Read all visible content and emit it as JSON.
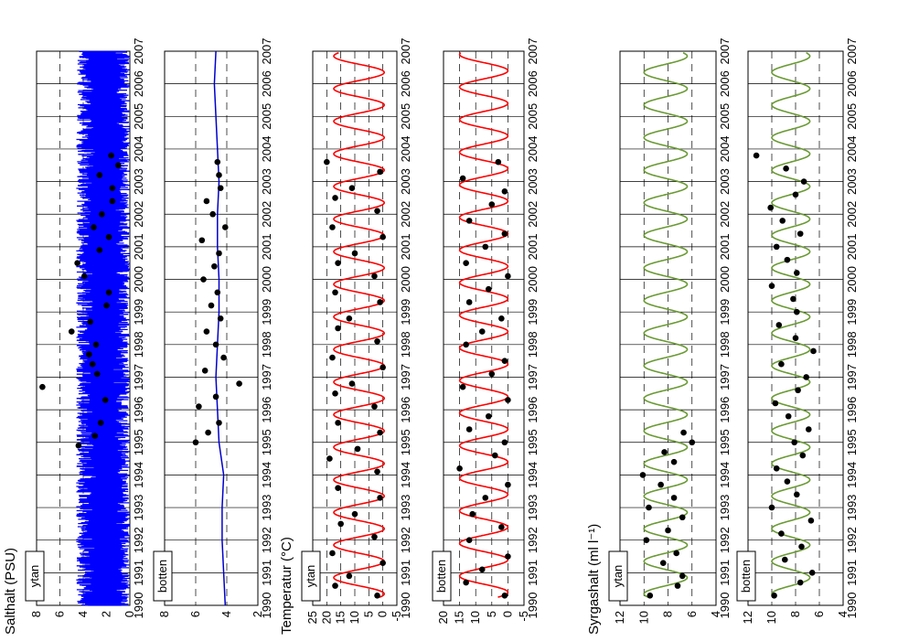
{
  "chart_data": [
    {
      "type": "line",
      "group": "salinity",
      "panel": "ytan",
      "color": "#0000ff",
      "fill_band": true,
      "ylabel": "Salthalt (PSU)",
      "label": "ytan",
      "ylim": [
        0,
        8
      ],
      "yticks": [
        0,
        2,
        4,
        6,
        8
      ],
      "xlim": [
        1990,
        2007
      ],
      "xticks": [
        1990,
        1991,
        1992,
        1993,
        1994,
        1995,
        1996,
        1997,
        1998,
        1999,
        2000,
        2001,
        2002,
        2003,
        2004,
        2005,
        2006,
        2007
      ],
      "grid": true,
      "line": {
        "x": [
          1990,
          1991,
          1992,
          1993,
          1994,
          1995,
          1996,
          1997,
          1998,
          1999,
          2000,
          2001,
          2002,
          2003,
          2004,
          2005,
          2006,
          2007
        ],
        "y": [
          2.5,
          2.6,
          2.5,
          2.7,
          2.5,
          2.6,
          2.7,
          2.6,
          2.8,
          2.6,
          2.5,
          2.6,
          2.6,
          2.5,
          2.6,
          2.5,
          2.6,
          2.5
        ]
      },
      "band": {
        "lower": 0.0,
        "upper": 4.6
      },
      "points": {
        "x": [
          1994.9,
          1995.2,
          1995.6,
          1996.3,
          1996.7,
          1997.1,
          1997.4,
          1997.7,
          1998.0,
          1998.4,
          1998.7,
          1999.2,
          1999.6,
          2000.1,
          2000.5,
          2000.9,
          2001.3,
          2001.6,
          2002.0,
          2002.4,
          2002.8,
          2003.2,
          2003.5,
          2003.8
        ],
        "y": [
          4.4,
          3.0,
          2.5,
          2.1,
          7.5,
          2.8,
          3.2,
          3.5,
          2.9,
          5.0,
          3.4,
          2.0,
          1.8,
          3.9,
          4.5,
          2.6,
          1.8,
          3.1,
          2.4,
          1.5,
          1.5,
          2.6,
          1.0,
          1.6
        ]
      }
    },
    {
      "type": "line",
      "group": "salinity",
      "panel": "botten",
      "color": "#0000cc",
      "ylabel": "",
      "label": "botten",
      "ylim": [
        2,
        8
      ],
      "yticks": [
        2,
        4,
        6,
        8
      ],
      "xlim": [
        1990,
        2007
      ],
      "xticks": [
        1990,
        1991,
        1992,
        1993,
        1994,
        1995,
        1996,
        1997,
        1998,
        1999,
        2000,
        2001,
        2002,
        2003,
        2004,
        2005,
        2006,
        2007
      ],
      "grid": true,
      "line": {
        "x": [
          1990,
          1991,
          1992,
          1993,
          1994,
          1995,
          1996,
          1997,
          1998,
          1999,
          2000,
          2001,
          2002,
          2003,
          2004,
          2005,
          2006,
          2007
        ],
        "y": [
          4.1,
          4.2,
          4.3,
          4.3,
          4.2,
          4.5,
          4.6,
          4.7,
          4.6,
          4.5,
          4.5,
          4.6,
          4.6,
          4.5,
          4.6,
          4.7,
          4.8,
          4.7
        ]
      },
      "points": {
        "x": [
          1995.0,
          1995.3,
          1995.6,
          1996.1,
          1996.4,
          1996.8,
          1997.2,
          1997.6,
          1998.0,
          1998.4,
          1998.8,
          1999.2,
          1999.6,
          2000.0,
          2000.4,
          2000.8,
          2001.2,
          2001.6,
          2002.0,
          2002.4,
          2002.8,
          2003.2,
          2003.6
        ],
        "y": [
          6.0,
          5.2,
          4.5,
          5.8,
          4.7,
          3.2,
          5.4,
          4.2,
          4.7,
          5.3,
          4.4,
          5.0,
          4.6,
          5.5,
          4.8,
          4.5,
          5.6,
          4.1,
          4.9,
          5.3,
          4.4,
          4.5,
          4.6
        ]
      }
    },
    {
      "type": "line",
      "group": "temperature",
      "panel": "ytan",
      "color": "#ff0000",
      "ylabel": "Temperatur (°C)",
      "label": "ytan",
      "ylim": [
        -5,
        25
      ],
      "yticks": [
        -5,
        0,
        5,
        10,
        15,
        20,
        25
      ],
      "xlim": [
        1990,
        2007
      ],
      "xticks": [
        1990,
        1991,
        1992,
        1993,
        1994,
        1995,
        1996,
        1997,
        1998,
        1999,
        2000,
        2001,
        2002,
        2003,
        2004,
        2005,
        2006,
        2007
      ],
      "grid": true,
      "seasonal": {
        "mean": 8.5,
        "amplitude": 9.0,
        "phase": 0.6
      },
      "points": {
        "x": [
          1990.3,
          1990.6,
          1990.9,
          1991.3,
          1991.6,
          1992.1,
          1992.5,
          1992.8,
          1993.3,
          1993.6,
          1994.1,
          1994.5,
          1994.8,
          1995.3,
          1995.6,
          1996.1,
          1996.5,
          1996.8,
          1997.3,
          1997.6,
          1998.1,
          1998.5,
          1998.8,
          1999.3,
          1999.6,
          2000.1,
          2000.5,
          2000.8,
          2001.3,
          2001.6,
          2002.1,
          2002.5,
          2002.8,
          2003.3,
          2003.6
        ],
        "y": [
          2,
          17,
          12,
          0,
          18,
          3,
          15,
          10,
          1,
          16,
          2,
          19,
          9,
          1,
          16,
          3,
          17,
          11,
          0,
          18,
          2,
          16,
          12,
          1,
          17,
          3,
          16,
          10,
          0,
          18,
          2,
          17,
          11,
          1,
          20
        ]
      }
    },
    {
      "type": "line",
      "group": "temperature",
      "panel": "botten",
      "color": "#ff0000",
      "ylabel": "",
      "label": "botten",
      "ylim": [
        -5,
        20
      ],
      "yticks": [
        -5,
        0,
        5,
        10,
        15,
        20
      ],
      "xlim": [
        1990,
        2007
      ],
      "xticks": [
        1990,
        1991,
        1992,
        1993,
        1994,
        1995,
        1996,
        1997,
        1998,
        1999,
        2000,
        2001,
        2002,
        2003,
        2004,
        2005,
        2006,
        2007
      ],
      "grid": true,
      "seasonal": {
        "mean": 7.5,
        "amplitude": 7.5,
        "phase": 0.65
      },
      "points": {
        "x": [
          1990.3,
          1990.7,
          1991.1,
          1991.5,
          1992.0,
          1992.4,
          1992.8,
          1993.3,
          1993.7,
          1994.2,
          1994.6,
          1995.0,
          1995.4,
          1995.8,
          1996.3,
          1996.7,
          1997.1,
          1997.5,
          1998.0,
          1998.4,
          1998.8,
          1999.3,
          1999.7,
          2000.1,
          2000.5,
          2001.0,
          2001.4,
          2001.8,
          2002.3,
          2002.7,
          2003.1,
          2003.6
        ],
        "y": [
          1,
          13,
          8,
          0,
          12,
          2,
          11,
          7,
          0,
          15,
          4,
          1,
          12,
          6,
          0,
          14,
          5,
          1,
          13,
          8,
          2,
          12,
          6,
          0,
          13,
          7,
          1,
          12,
          5,
          1,
          14,
          3
        ]
      }
    },
    {
      "type": "line",
      "group": "oxygen",
      "panel": "ytan",
      "color": "#6a9a34",
      "ylabel": "Syrgashalt (ml l⁻¹)",
      "label": "ytan",
      "ylim": [
        4,
        12
      ],
      "yticks": [
        4,
        6,
        8,
        10,
        12
      ],
      "xlim": [
        1990,
        2007
      ],
      "xticks": [
        1990,
        1991,
        1992,
        1993,
        1994,
        1995,
        1996,
        1997,
        1998,
        1999,
        2000,
        2001,
        2002,
        2003,
        2004,
        2005,
        2006,
        2007
      ],
      "grid": true,
      "seasonal": {
        "mean": 8.2,
        "amplitude": 1.8,
        "phase": 0.1
      },
      "points": {
        "x": [
          1990.3,
          1990.6,
          1990.9,
          1991.3,
          1991.6,
          1992.0,
          1992.3,
          1992.7,
          1993.0,
          1993.3,
          1993.7,
          1994.0,
          1994.4,
          1994.7,
          1995.0,
          1995.3
        ],
        "y": [
          9.5,
          7.2,
          6.8,
          8.4,
          7.3,
          9.8,
          8.0,
          6.8,
          9.6,
          7.5,
          8.6,
          10.1,
          7.5,
          8.3,
          6.0,
          6.7
        ]
      }
    },
    {
      "type": "line",
      "group": "oxygen",
      "panel": "botten",
      "color": "#6a9a34",
      "ylabel": "",
      "label": "botten",
      "ylim": [
        4,
        12
      ],
      "yticks": [
        4,
        6,
        8,
        10,
        12
      ],
      "xlim": [
        1990,
        2007
      ],
      "xticks": [
        1990,
        1991,
        1992,
        1993,
        1994,
        1995,
        1996,
        1997,
        1998,
        1999,
        2000,
        2001,
        2002,
        2003,
        2004,
        2005,
        2006,
        2007
      ],
      "grid": true,
      "seasonal": {
        "mean": 8.4,
        "amplitude": 1.6,
        "phase": 0.1
      },
      "points": {
        "x": [
          1990.3,
          1990.7,
          1991.0,
          1991.4,
          1991.8,
          1992.2,
          1992.6,
          1993.0,
          1993.4,
          1993.8,
          1994.2,
          1994.6,
          1995.0,
          1995.4,
          1995.8,
          1996.2,
          1996.6,
          1997.0,
          1997.4,
          1997.8,
          1998.2,
          1998.6,
          1999.0,
          1999.4,
          1999.8,
          2000.2,
          2000.6,
          2001.0,
          2001.4,
          2001.8,
          2002.2,
          2002.6,
          2003.0,
          2003.4,
          2003.8
        ],
        "y": [
          9.8,
          7.6,
          6.6,
          8.9,
          7.5,
          9.2,
          6.7,
          10.0,
          7.9,
          8.7,
          9.6,
          7.4,
          8.1,
          6.9,
          8.6,
          9.7,
          7.8,
          7.1,
          9.2,
          6.5,
          8.0,
          9.4,
          7.9,
          8.2,
          10.0,
          7.9,
          8.7,
          9.6,
          7.6,
          9.1,
          10.1,
          8.0,
          7.3,
          8.8,
          11.3
        ]
      }
    }
  ]
}
